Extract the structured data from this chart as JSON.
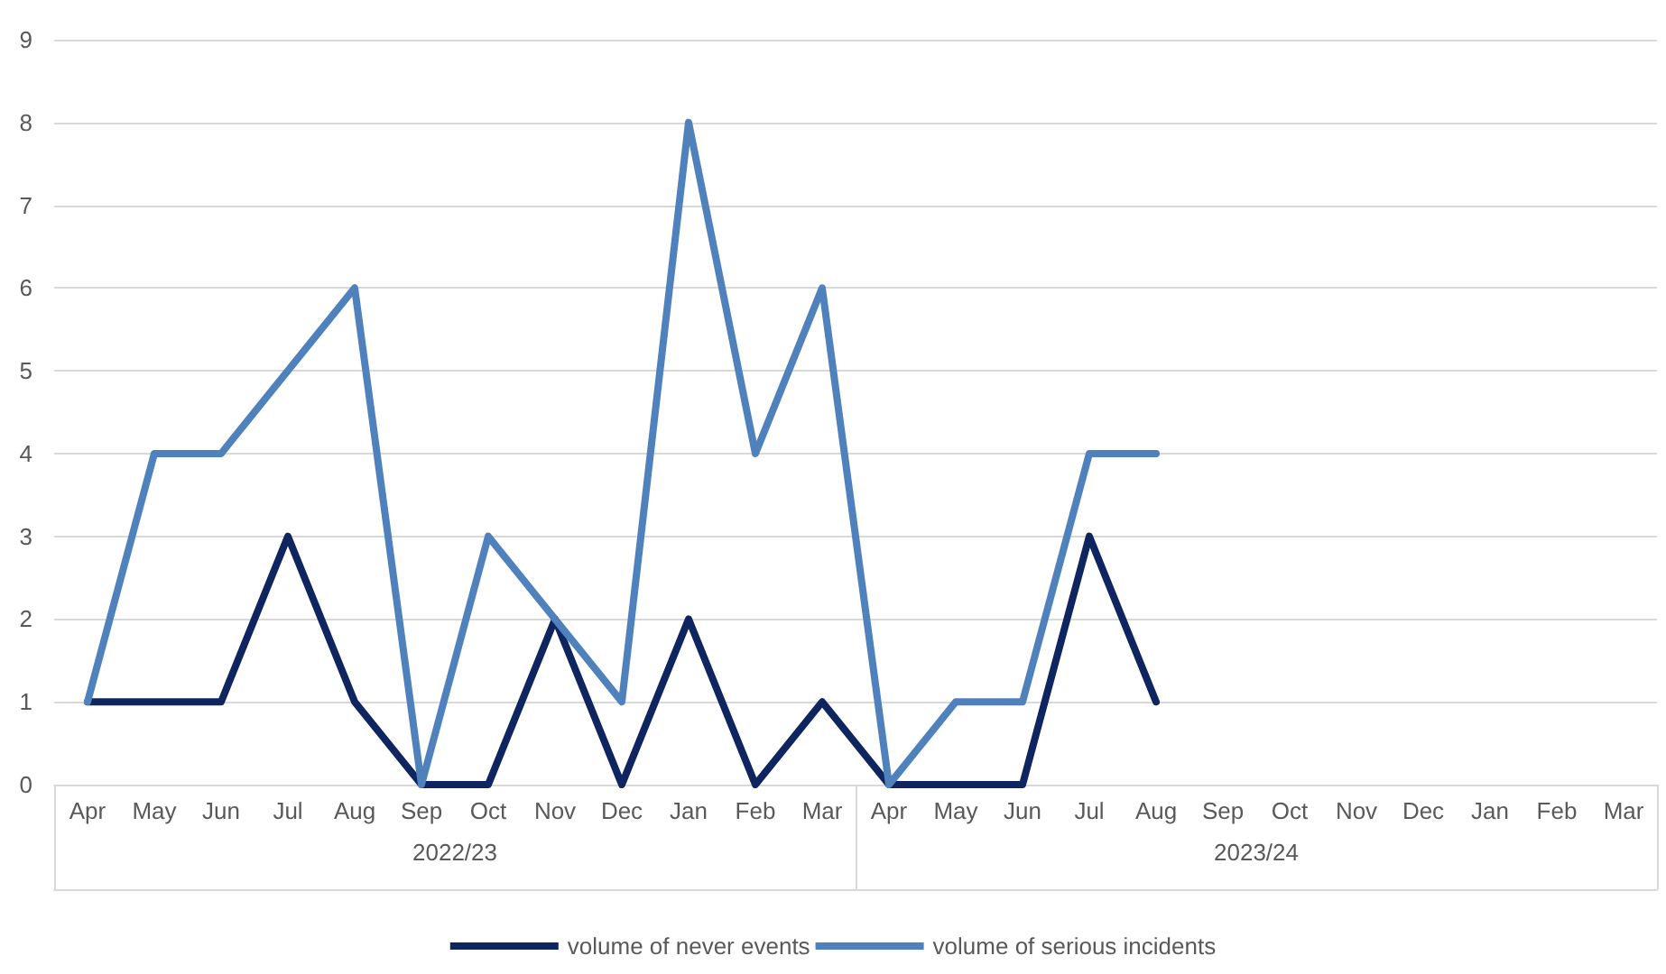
{
  "chart_data": {
    "type": "line",
    "categories": [
      "Apr",
      "May",
      "Jun",
      "Jul",
      "Aug",
      "Sep",
      "Oct",
      "Nov",
      "Dec",
      "Jan",
      "Feb",
      "Mar",
      "Apr",
      "May",
      "Jun",
      "Jul",
      "Aug",
      "Sep",
      "Oct",
      "Nov",
      "Dec",
      "Jan",
      "Feb",
      "Mar"
    ],
    "series": [
      {
        "name": "volume of never events",
        "color": "#0e2560",
        "values": [
          1,
          1,
          1,
          3,
          1,
          0,
          0,
          2,
          0,
          2,
          0,
          1,
          0,
          0,
          0,
          3,
          1,
          null,
          null,
          null,
          null,
          null,
          null,
          null
        ]
      },
      {
        "name": "volume of serious incidents",
        "color": "#4f81bd",
        "values": [
          1,
          4,
          4,
          5,
          6,
          0,
          3,
          2,
          1,
          8,
          4,
          6,
          0,
          1,
          1,
          4,
          4,
          null,
          null,
          null,
          null,
          null,
          null,
          null
        ]
      }
    ],
    "annotations": [
      "2022/23",
      "2023/24"
    ],
    "ylim": [
      0,
      9
    ],
    "yticks": [
      0,
      1,
      2,
      3,
      4,
      5,
      6,
      7,
      8,
      9
    ],
    "grid": "y",
    "legend": "bottom",
    "marker": "none",
    "line_style": "solid"
  }
}
